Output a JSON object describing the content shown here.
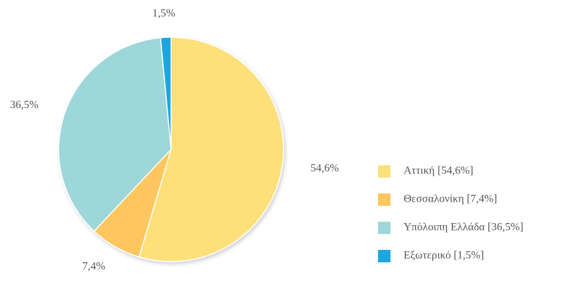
{
  "chart_data": {
    "type": "pie",
    "categories": [
      "Αττική [54,6%]",
      "Θεσσαλονίκη [7,4%]",
      "Υπόλοιπη Ελλάδα [36,5%]",
      "Εξωτερικό [1,5%]"
    ],
    "values": [
      54.6,
      7.4,
      36.5,
      1.5
    ],
    "value_labels": [
      "54,6%",
      "7,4%",
      "36,5%",
      "1,5%"
    ],
    "colors": [
      "#fee07a",
      "#fdc65e",
      "#9dd7d9",
      "#1ba6e0"
    ],
    "legend": "right"
  }
}
